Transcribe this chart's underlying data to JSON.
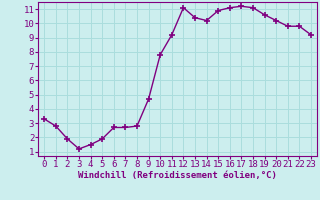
{
  "x": [
    0,
    1,
    2,
    3,
    4,
    5,
    6,
    7,
    8,
    9,
    10,
    11,
    12,
    13,
    14,
    15,
    16,
    17,
    18,
    19,
    20,
    21,
    22,
    23
  ],
  "y": [
    3.3,
    2.8,
    1.9,
    1.2,
    1.5,
    1.9,
    2.7,
    2.7,
    2.8,
    4.7,
    7.8,
    9.2,
    11.1,
    10.4,
    10.2,
    10.9,
    11.1,
    11.2,
    11.1,
    10.6,
    10.2,
    9.8,
    9.8,
    9.2
  ],
  "line_color": "#800080",
  "marker": "+",
  "marker_size": 5,
  "marker_linewidth": 1.2,
  "bg_color": "#cceeee",
  "grid_color": "#aadddd",
  "xlabel": "Windchill (Refroidissement éolien,°C)",
  "ylabel": "",
  "xlim": [
    -0.5,
    23.5
  ],
  "ylim": [
    0.7,
    11.5
  ],
  "yticks": [
    1,
    2,
    3,
    4,
    5,
    6,
    7,
    8,
    9,
    10,
    11
  ],
  "xticks": [
    0,
    1,
    2,
    3,
    4,
    5,
    6,
    7,
    8,
    9,
    10,
    11,
    12,
    13,
    14,
    15,
    16,
    17,
    18,
    19,
    20,
    21,
    22,
    23
  ],
  "tick_color": "#800080",
  "label_color": "#800080",
  "axis_color": "#800080",
  "font_size": 6.5,
  "xlabel_fontsize": 6.5,
  "line_width": 1.0
}
